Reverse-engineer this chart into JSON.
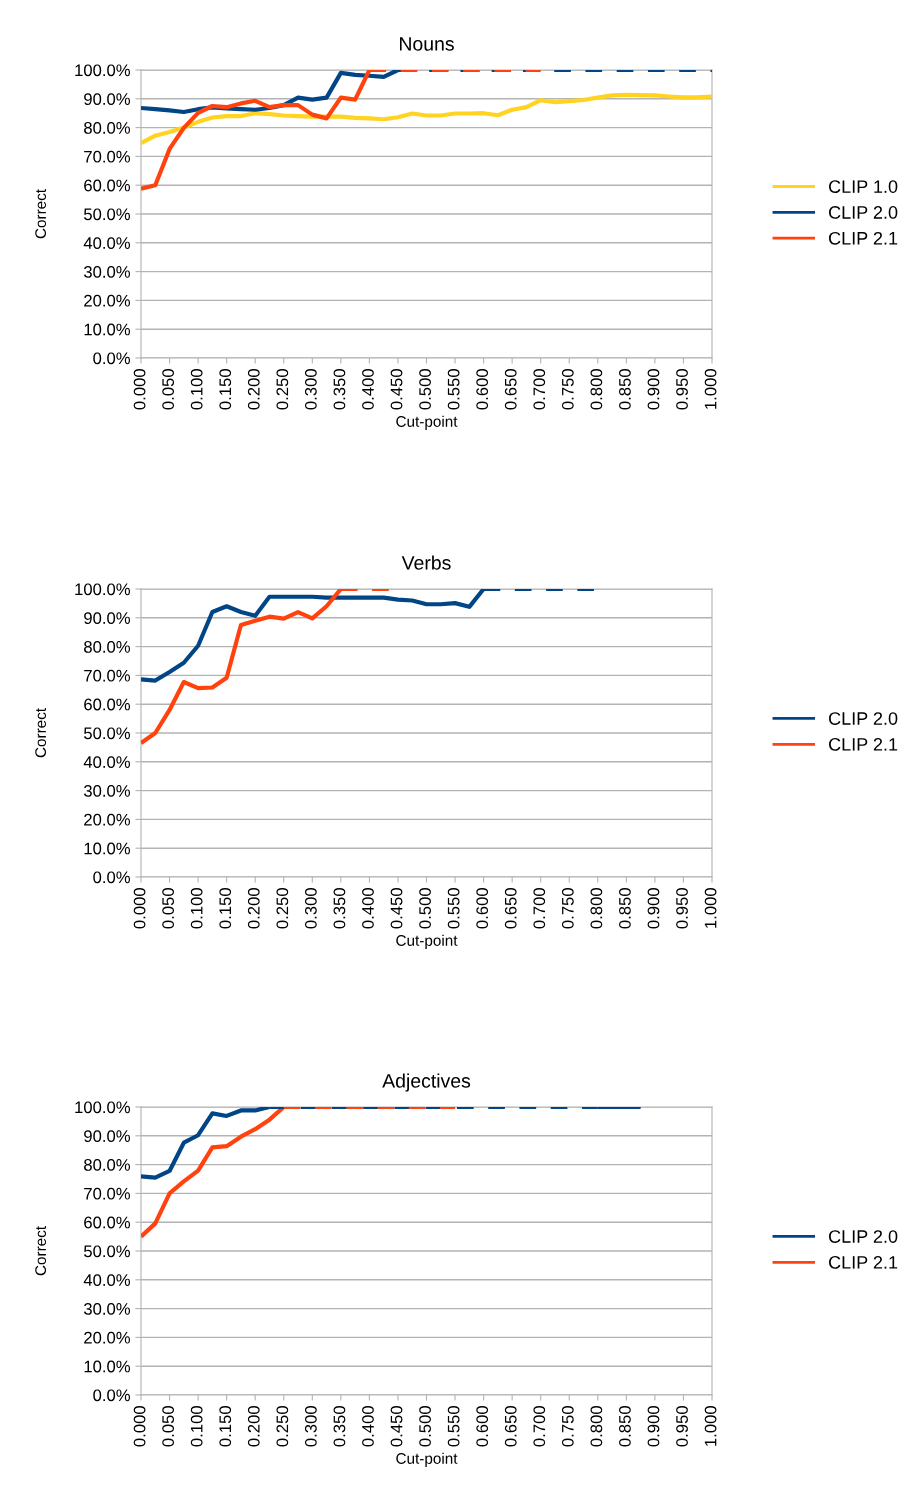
{
  "chart_data": [
    {
      "type": "line",
      "title": "Nouns",
      "xlabel": "Cut-point",
      "ylabel": "Correct",
      "grid": "y",
      "legend": "right",
      "marker": "none",
      "xlim": [
        0,
        1
      ],
      "ylim": [
        0,
        100
      ],
      "xticks": [
        {
          "value": 0,
          "label": "0.000"
        },
        {
          "value": 0.05,
          "label": "0.050"
        },
        {
          "value": 0.1,
          "label": "0.100"
        },
        {
          "value": 0.15,
          "label": "0.150"
        },
        {
          "value": 0.2,
          "label": "0.200"
        },
        {
          "value": 0.25,
          "label": "0.250"
        },
        {
          "value": 0.3,
          "label": "0.300"
        },
        {
          "value": 0.35,
          "label": "0.350"
        },
        {
          "value": 0.4,
          "label": "0.400"
        },
        {
          "value": 0.45,
          "label": "0.450"
        },
        {
          "value": 0.5,
          "label": "0.500"
        },
        {
          "value": 0.55,
          "label": "0.550"
        },
        {
          "value": 0.6,
          "label": "0.600"
        },
        {
          "value": 0.65,
          "label": "0.650"
        },
        {
          "value": 0.7,
          "label": "0.700"
        },
        {
          "value": 0.75,
          "label": "0.750"
        },
        {
          "value": 0.8,
          "label": "0.800"
        },
        {
          "value": 0.85,
          "label": "0.850"
        },
        {
          "value": 0.9,
          "label": "0.900"
        },
        {
          "value": 0.95,
          "label": "0.950"
        },
        {
          "value": 1,
          "label": "1.000"
        }
      ],
      "yticks": [
        {
          "value": 0,
          "label": "0.0%"
        },
        {
          "value": 10,
          "label": "10.0%"
        },
        {
          "value": 20,
          "label": "20.0%"
        },
        {
          "value": 30,
          "label": "30.0%"
        },
        {
          "value": 40,
          "label": "40.0%"
        },
        {
          "value": 50,
          "label": "50.0%"
        },
        {
          "value": 60,
          "label": "60.0%"
        },
        {
          "value": 70,
          "label": "70.0%"
        },
        {
          "value": 80,
          "label": "80.0%"
        },
        {
          "value": 90,
          "label": "90.0%"
        },
        {
          "value": 100,
          "label": "100.0%"
        }
      ],
      "series": [
        {
          "name": "CLIP 1.0",
          "color": "#ffd320",
          "line_style": "solid",
          "x": [
            0,
            0.025,
            0.05,
            0.075,
            0.1,
            0.125,
            0.15,
            0.175,
            0.2,
            0.225,
            0.25,
            0.275,
            0.3,
            0.325,
            0.35,
            0.375,
            0.4,
            0.425,
            0.45,
            0.475,
            0.5,
            0.525,
            0.55,
            0.575,
            0.6,
            0.625,
            0.65,
            0.675,
            0.7,
            0.725,
            0.75,
            0.775,
            0.8,
            0.825,
            0.85,
            0.875,
            0.9,
            0.925,
            0.95,
            0.975,
            1
          ],
          "values": [
            74.6,
            77.2,
            78.5,
            80,
            82,
            83.5,
            84,
            84,
            85,
            84.7,
            84.2,
            84,
            83.8,
            83.8,
            83.8,
            83.4,
            83.2,
            82.9,
            83.6,
            84.9,
            84.2,
            84.2,
            84.9,
            84.9,
            85,
            84.3,
            86.2,
            87.1,
            89.5,
            88.8,
            89.2,
            89.6,
            90.4,
            91.2,
            91.4,
            91.3,
            91.2,
            90.8,
            90.5,
            90.5,
            90.8
          ]
        },
        {
          "name": "CLIP 2.0",
          "color": "#004586",
          "line_style": "solid",
          "x": [
            0,
            0.025,
            0.05,
            0.075,
            0.1,
            0.125,
            0.15,
            0.175,
            0.2,
            0.225,
            0.25,
            0.275,
            0.3,
            0.325,
            0.35,
            0.375,
            0.4,
            0.425,
            0.45
          ],
          "values": [
            86.8,
            86.4,
            86,
            85.4,
            86.4,
            87,
            86.7,
            86.4,
            86.2,
            86.8,
            87.8,
            90.4,
            89.7,
            90.4,
            99,
            98.3,
            98,
            97.6,
            100
          ]
        },
        {
          "name": "CLIP 2.1",
          "color": "#ff420e",
          "line_style": "solid",
          "x": [
            0,
            0.025,
            0.05,
            0.075,
            0.1,
            0.125,
            0.15,
            0.175,
            0.2,
            0.225,
            0.25,
            0.275,
            0.3,
            0.325,
            0.35,
            0.375,
            0.4
          ],
          "values": [
            58.8,
            60,
            72.6,
            79.9,
            85.1,
            87.5,
            87.1,
            88.4,
            89.3,
            87.1,
            87.8,
            87.8,
            84.5,
            83.2,
            90.4,
            89.7,
            100
          ]
        },
        {
          "color": "#004586",
          "line_style": "dashed",
          "x": [
            0.45,
            1
          ],
          "values": [
            100,
            100
          ]
        },
        {
          "color": "#ff420e",
          "line_style": "dashed",
          "x": [
            0.4,
            0.7
          ],
          "values": [
            100,
            100
          ]
        }
      ]
    },
    {
      "type": "line",
      "title": "Verbs",
      "xlabel": "Cut-point",
      "ylabel": "Correct",
      "grid": "y",
      "legend": "right",
      "marker": "none",
      "xlim": [
        0,
        1
      ],
      "ylim": [
        0,
        100
      ],
      "xticks": [
        {
          "value": 0,
          "label": "0.000"
        },
        {
          "value": 0.05,
          "label": "0.050"
        },
        {
          "value": 0.1,
          "label": "0.100"
        },
        {
          "value": 0.15,
          "label": "0.150"
        },
        {
          "value": 0.2,
          "label": "0.200"
        },
        {
          "value": 0.25,
          "label": "0.250"
        },
        {
          "value": 0.3,
          "label": "0.300"
        },
        {
          "value": 0.35,
          "label": "0.350"
        },
        {
          "value": 0.4,
          "label": "0.400"
        },
        {
          "value": 0.45,
          "label": "0.450"
        },
        {
          "value": 0.5,
          "label": "0.500"
        },
        {
          "value": 0.55,
          "label": "0.550"
        },
        {
          "value": 0.6,
          "label": "0.600"
        },
        {
          "value": 0.65,
          "label": "0.650"
        },
        {
          "value": 0.7,
          "label": "0.700"
        },
        {
          "value": 0.75,
          "label": "0.750"
        },
        {
          "value": 0.8,
          "label": "0.800"
        },
        {
          "value": 0.85,
          "label": "0.850"
        },
        {
          "value": 0.9,
          "label": "0.900"
        },
        {
          "value": 0.95,
          "label": "0.950"
        },
        {
          "value": 1,
          "label": "1.000"
        }
      ],
      "yticks": [
        {
          "value": 0,
          "label": "0.0%"
        },
        {
          "value": 10,
          "label": "10.0%"
        },
        {
          "value": 20,
          "label": "20.0%"
        },
        {
          "value": 30,
          "label": "30.0%"
        },
        {
          "value": 40,
          "label": "40.0%"
        },
        {
          "value": 50,
          "label": "50.0%"
        },
        {
          "value": 60,
          "label": "60.0%"
        },
        {
          "value": 70,
          "label": "70.0%"
        },
        {
          "value": 80,
          "label": "80.0%"
        },
        {
          "value": 90,
          "label": "90.0%"
        },
        {
          "value": 100,
          "label": "100.0%"
        }
      ],
      "series": [
        {
          "name": "CLIP 2.0",
          "color": "#004586",
          "line_style": "solid",
          "x": [
            0,
            0.025,
            0.05,
            0.075,
            0.1,
            0.125,
            0.15,
            0.175,
            0.2,
            0.225,
            0.25,
            0.275,
            0.3,
            0.325,
            0.35,
            0.375,
            0.4,
            0.425,
            0.45,
            0.475,
            0.5,
            0.525,
            0.55,
            0.575,
            0.6
          ],
          "values": [
            68.6,
            68.2,
            71.2,
            74.4,
            80.3,
            92,
            94,
            92,
            90.7,
            97.3,
            97.3,
            97.3,
            97.3,
            97,
            97,
            97,
            97,
            97,
            96.3,
            96,
            94.7,
            94.7,
            95.1,
            93.8,
            100
          ]
        },
        {
          "name": "CLIP 2.1",
          "color": "#ff420e",
          "line_style": "solid",
          "x": [
            0,
            0.025,
            0.05,
            0.075,
            0.1,
            0.125,
            0.15,
            0.175,
            0.2,
            0.225,
            0.25,
            0.275,
            0.3,
            0.325,
            0.35
          ],
          "values": [
            46.5,
            50,
            58,
            67.7,
            65.6,
            65.8,
            69.2,
            87.5,
            89,
            90.4,
            89.7,
            92,
            89.8,
            94,
            100
          ]
        },
        {
          "color": "#004586",
          "line_style": "dashed",
          "x": [
            0.6,
            0.8
          ],
          "values": [
            100,
            100
          ]
        },
        {
          "color": "#ff420e",
          "line_style": "dashed",
          "x": [
            0.35,
            0.45
          ],
          "values": [
            100,
            100
          ]
        }
      ]
    },
    {
      "type": "line",
      "title": "Adjectives",
      "xlabel": "Cut-point",
      "ylabel": "Correct",
      "grid": "y",
      "legend": "right",
      "marker": "none",
      "xlim": [
        0,
        1
      ],
      "ylim": [
        0,
        100
      ],
      "xticks": [
        {
          "value": 0,
          "label": "0.000"
        },
        {
          "value": 0.05,
          "label": "0.050"
        },
        {
          "value": 0.1,
          "label": "0.100"
        },
        {
          "value": 0.15,
          "label": "0.150"
        },
        {
          "value": 0.2,
          "label": "0.200"
        },
        {
          "value": 0.25,
          "label": "0.250"
        },
        {
          "value": 0.3,
          "label": "0.300"
        },
        {
          "value": 0.35,
          "label": "0.350"
        },
        {
          "value": 0.4,
          "label": "0.400"
        },
        {
          "value": 0.45,
          "label": "0.450"
        },
        {
          "value": 0.5,
          "label": "0.500"
        },
        {
          "value": 0.55,
          "label": "0.550"
        },
        {
          "value": 0.6,
          "label": "0.600"
        },
        {
          "value": 0.65,
          "label": "0.650"
        },
        {
          "value": 0.7,
          "label": "0.700"
        },
        {
          "value": 0.75,
          "label": "0.750"
        },
        {
          "value": 0.8,
          "label": "0.800"
        },
        {
          "value": 0.85,
          "label": "0.850"
        },
        {
          "value": 0.9,
          "label": "0.900"
        },
        {
          "value": 0.95,
          "label": "0.950"
        },
        {
          "value": 1,
          "label": "1.000"
        }
      ],
      "yticks": [
        {
          "value": 0,
          "label": "0.0%"
        },
        {
          "value": 10,
          "label": "10.0%"
        },
        {
          "value": 20,
          "label": "20.0%"
        },
        {
          "value": 30,
          "label": "30.0%"
        },
        {
          "value": 40,
          "label": "40.0%"
        },
        {
          "value": 50,
          "label": "50.0%"
        },
        {
          "value": 60,
          "label": "60.0%"
        },
        {
          "value": 70,
          "label": "70.0%"
        },
        {
          "value": 80,
          "label": "80.0%"
        },
        {
          "value": 90,
          "label": "90.0%"
        },
        {
          "value": 100,
          "label": "100.0%"
        }
      ],
      "series": [
        {
          "name": "CLIP 2.0",
          "color": "#004586",
          "line_style": "solid",
          "x": [
            0,
            0.025,
            0.05,
            0.075,
            0.1,
            0.125,
            0.15,
            0.175,
            0.2,
            0.225
          ],
          "values": [
            75.9,
            75.5,
            77.8,
            87.6,
            90.2,
            97.8,
            96.9,
            98.8,
            98.8,
            100
          ]
        },
        {
          "name": "CLIP 2.1",
          "color": "#ff420e",
          "line_style": "solid",
          "x": [
            0,
            0.025,
            0.05,
            0.075,
            0.1,
            0.125,
            0.15,
            0.175,
            0.2,
            0.225,
            0.25
          ],
          "values": [
            55,
            59.6,
            70,
            74.2,
            77.9,
            86,
            86.4,
            89.7,
            92.3,
            95.6,
            100
          ]
        },
        {
          "color": "#004586",
          "line_style": "dashed",
          "x": [
            0.225,
            0.8
          ],
          "values": [
            100,
            100
          ]
        },
        {
          "color": "#004586",
          "line_style": "solid",
          "x": [
            0.8,
            0.875
          ],
          "values": [
            100,
            100
          ]
        },
        {
          "color": "#ff420e",
          "line_style": "dashed",
          "x": [
            0.25,
            0.55
          ],
          "values": [
            100,
            100
          ]
        }
      ]
    }
  ]
}
